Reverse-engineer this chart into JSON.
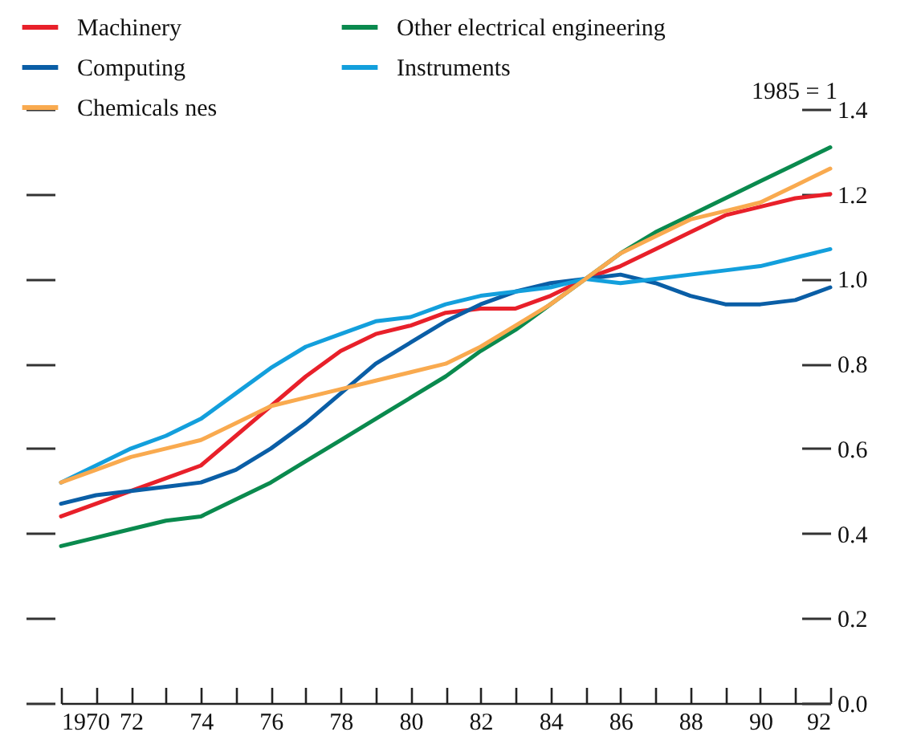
{
  "chart_data": {
    "type": "line",
    "ylabel": "1985 = 1",
    "legend": "top",
    "x": [
      1970,
      1971,
      1972,
      1973,
      1974,
      1975,
      1976,
      1977,
      1978,
      1979,
      1980,
      1981,
      1982,
      1983,
      1984,
      1985,
      1986,
      1987,
      1988,
      1989,
      1990,
      1991,
      1992
    ],
    "series": [
      {
        "name": "Machinery",
        "color": "#e8202a",
        "values": [
          0.44,
          0.47,
          0.5,
          0.53,
          0.56,
          0.63,
          0.7,
          0.77,
          0.83,
          0.87,
          0.89,
          0.92,
          0.93,
          0.93,
          0.96,
          1.0,
          1.03,
          1.07,
          1.11,
          1.15,
          1.17,
          1.19,
          1.2
        ]
      },
      {
        "name": "Other electrical engineering",
        "color": "#0a8a4e",
        "values": [
          0.37,
          0.39,
          0.41,
          0.43,
          0.44,
          0.48,
          0.52,
          0.57,
          0.62,
          0.67,
          0.72,
          0.77,
          0.83,
          0.88,
          0.94,
          1.0,
          1.06,
          1.11,
          1.15,
          1.19,
          1.23,
          1.27,
          1.31
        ]
      },
      {
        "name": "Computing",
        "color": "#0a5ea6",
        "values": [
          0.47,
          0.49,
          0.5,
          0.51,
          0.52,
          0.55,
          0.6,
          0.66,
          0.73,
          0.8,
          0.85,
          0.9,
          0.94,
          0.97,
          0.99,
          1.0,
          1.01,
          0.99,
          0.96,
          0.94,
          0.94,
          0.95,
          0.98
        ]
      },
      {
        "name": "Instruments",
        "color": "#139fdc",
        "values": [
          0.52,
          0.56,
          0.6,
          0.63,
          0.67,
          0.73,
          0.79,
          0.84,
          0.87,
          0.9,
          0.91,
          0.94,
          0.96,
          0.97,
          0.98,
          1.0,
          0.99,
          1.0,
          1.01,
          1.02,
          1.03,
          1.05,
          1.07
        ]
      },
      {
        "name": "Chemicals nes",
        "color": "#f9aa4f",
        "values": [
          0.52,
          0.55,
          0.58,
          0.6,
          0.62,
          0.66,
          0.7,
          0.72,
          0.74,
          0.76,
          0.78,
          0.8,
          0.84,
          0.89,
          0.94,
          1.0,
          1.06,
          1.1,
          1.14,
          1.16,
          1.18,
          1.22,
          1.26
        ]
      }
    ],
    "xlim": [
      1970,
      1992
    ],
    "xticks": [
      {
        "value": 1970,
        "label": "1970"
      },
      {
        "value": 1971,
        "label": null
      },
      {
        "value": 1972,
        "label": "72"
      },
      {
        "value": 1973,
        "label": null
      },
      {
        "value": 1974,
        "label": "74"
      },
      {
        "value": 1975,
        "label": null
      },
      {
        "value": 1976,
        "label": "76"
      },
      {
        "value": 1977,
        "label": null
      },
      {
        "value": 1978,
        "label": "78"
      },
      {
        "value": 1979,
        "label": null
      },
      {
        "value": 1980,
        "label": "80"
      },
      {
        "value": 1981,
        "label": null
      },
      {
        "value": 1982,
        "label": "82"
      },
      {
        "value": 1983,
        "label": null
      },
      {
        "value": 1984,
        "label": "84"
      },
      {
        "value": 1985,
        "label": null
      },
      {
        "value": 1986,
        "label": "86"
      },
      {
        "value": 1987,
        "label": null
      },
      {
        "value": 1988,
        "label": "88"
      },
      {
        "value": 1989,
        "label": null
      },
      {
        "value": 1990,
        "label": "90"
      },
      {
        "value": 1991,
        "label": null
      },
      {
        "value": 1992,
        "label": "92"
      }
    ],
    "ylim": [
      0,
      1.4
    ],
    "yticks": [
      {
        "value": 0,
        "label": "0.0"
      },
      {
        "value": 0.2,
        "label": "0.2"
      },
      {
        "value": 0.4,
        "label": "0.4"
      },
      {
        "value": 0.6,
        "label": "0.6"
      },
      {
        "value": 0.8,
        "label": "0.8"
      },
      {
        "value": 1.0,
        "label": "1.0"
      },
      {
        "value": 1.2,
        "label": "1.2"
      },
      {
        "value": 1.4,
        "label": "1.4"
      }
    ]
  }
}
